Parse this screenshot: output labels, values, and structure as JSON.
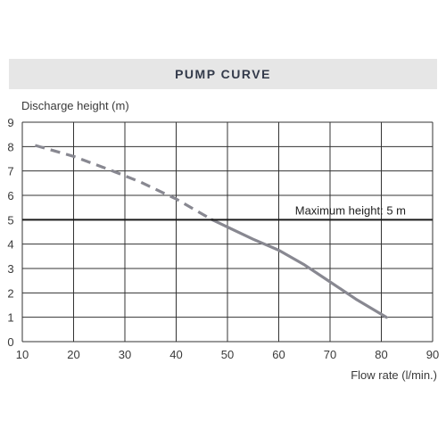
{
  "chart_data": {
    "type": "line",
    "title": "PUMP CURVE",
    "xlabel": "Flow rate (l/min.)",
    "ylabel": "Discharge height (m)",
    "xlim": [
      10,
      90
    ],
    "ylim": [
      0,
      9
    ],
    "xticks": [
      10,
      20,
      30,
      40,
      50,
      60,
      70,
      80,
      90
    ],
    "yticks": [
      0,
      1,
      2,
      3,
      4,
      5,
      6,
      7,
      8,
      9
    ],
    "grid": true,
    "series": [
      {
        "style": "dashed",
        "x": [
          12.5,
          20,
          27,
          33,
          40,
          47
        ],
        "y": [
          8.05,
          7.6,
          7.05,
          6.55,
          5.85,
          5.0
        ]
      },
      {
        "style": "solid",
        "x": [
          47,
          50,
          55,
          60,
          65,
          70,
          75,
          81
        ],
        "y": [
          5.0,
          4.7,
          4.2,
          3.75,
          3.15,
          2.45,
          1.75,
          1.0
        ]
      }
    ],
    "reference_line": {
      "y": 5,
      "label": "Maximum height: 5 m"
    },
    "colors": {
      "curve": "#888891",
      "reference": "#1a1a1a",
      "grid": "#333333"
    }
  }
}
